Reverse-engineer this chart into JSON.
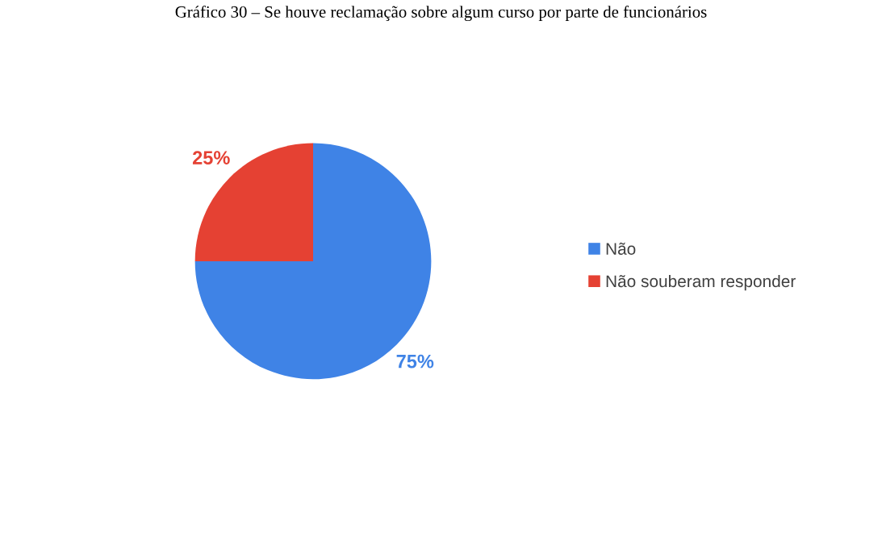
{
  "chart_data": {
    "type": "pie",
    "title": "Gráfico 30 – Se houve reclamação sobre algum curso por parte de funcionários",
    "categories": [
      "Não",
      "Não souberam responder"
    ],
    "values": [
      75,
      25
    ],
    "colors": [
      "#3f83e6",
      "#e54133"
    ],
    "value_labels": [
      "75%",
      "25%"
    ],
    "legend": "right"
  }
}
